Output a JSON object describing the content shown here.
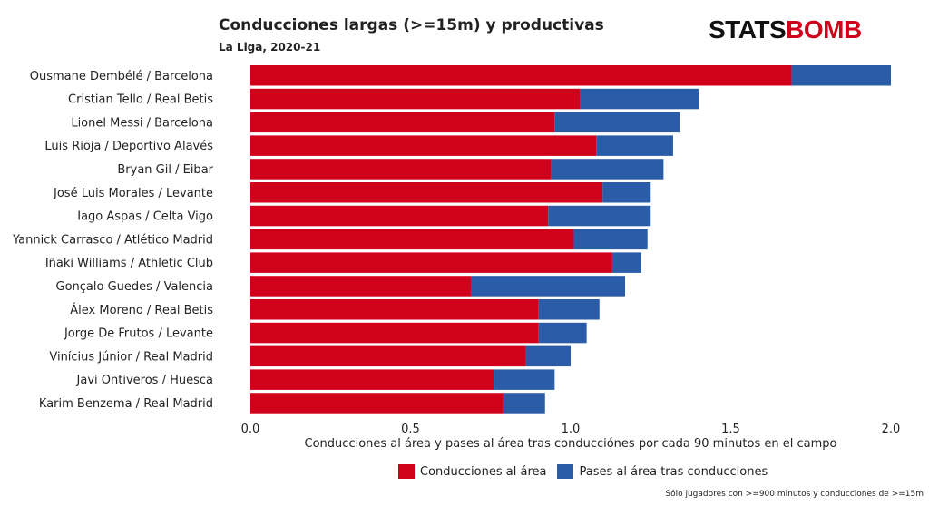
{
  "title": "Conducciones largas (>=15m) y productivas",
  "subtitle": "La Liga, 2020-21",
  "logo": {
    "part1": "STATS",
    "part2": "BOMB"
  },
  "footnote": "Sólo jugadores con >=900 minutos y conducciones de >=15m",
  "colors": {
    "series1": "#d0021b",
    "series2": "#2b5ca8"
  },
  "chart_data": {
    "type": "bar",
    "orientation": "horizontal",
    "stacked": true,
    "categories": [
      "Ousmane Dembélé / Barcelona",
      "Cristian Tello / Real Betis",
      "Lionel Messi / Barcelona",
      "Luis Rioja / Deportivo Alavés",
      "Bryan Gil / Eibar",
      "José Luis Morales / Levante",
      "Iago Aspas / Celta Vigo",
      "Yannick Carrasco / Atlético Madrid",
      "Iñaki Williams / Athletic Club",
      "Gonçalo Guedes / Valencia",
      "Álex Moreno / Real Betis",
      "Jorge De Frutos / Levante",
      "Vinícius Júnior / Real Madrid",
      "Javi Ontiveros / Huesca",
      "Karim Benzema / Real Madrid"
    ],
    "series": [
      {
        "name": "Conducciones al área",
        "color": "#d0021b",
        "values": [
          1.69,
          1.03,
          0.95,
          1.08,
          0.94,
          1.1,
          0.93,
          1.01,
          1.13,
          0.69,
          0.9,
          0.9,
          0.86,
          0.76,
          0.79
        ]
      },
      {
        "name": "Pases al área tras conducciones",
        "color": "#2b5ca8",
        "values": [
          0.31,
          0.37,
          0.39,
          0.24,
          0.35,
          0.15,
          0.32,
          0.23,
          0.09,
          0.48,
          0.19,
          0.15,
          0.14,
          0.19,
          0.13
        ]
      }
    ],
    "xlabel": "Conducciones al área y pases al área tras conducciónes por cada 90 minutos en el campo",
    "ylabel": "",
    "xlim": [
      0,
      2.0
    ],
    "xticks": [
      "0.0",
      "0.5",
      "1.0",
      "1.5",
      "2.0"
    ],
    "grid": false,
    "legend": "bottom-center"
  }
}
